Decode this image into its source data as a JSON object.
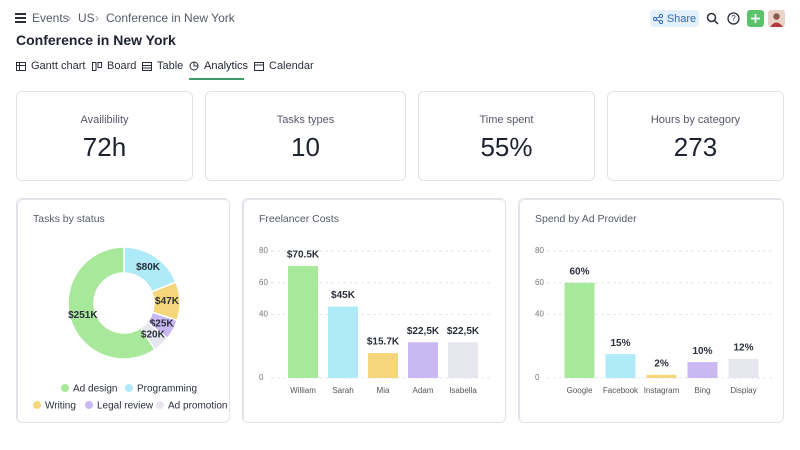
{
  "breadcrumb": [
    "Events",
    "US",
    "Conference in New York"
  ],
  "title": "Conference in New York",
  "share": "Share",
  "tabs": [
    "Gantt chart",
    "Board",
    "Table",
    "Analytics",
    "Calendar"
  ],
  "kpis": [
    {
      "label": "Availibility",
      "value": "72h"
    },
    {
      "label": "Tasks types",
      "value": "10"
    },
    {
      "label": "Time spent",
      "value": "55%"
    },
    {
      "label": "Hours by category",
      "value": "273"
    }
  ],
  "chart_data": [
    {
      "type": "pie",
      "title": "Tasks by status",
      "categories": [
        "Ad design",
        "Programming",
        "Writing",
        "Legal review",
        "Ad promotion"
      ],
      "values": [
        251000,
        80000,
        47000,
        25000,
        20000
      ],
      "value_labels": [
        "$251K",
        "$80K",
        "$47K",
        "$25K",
        "$20K"
      ],
      "colors": [
        "#a8e89a",
        "#aeeaf7",
        "#f5d67b",
        "#c9b8f2",
        "#e6e6ef"
      ]
    },
    {
      "type": "bar",
      "title": "Freelancer Costs",
      "categories": [
        "William",
        "Sarah",
        "Mia",
        "Adam",
        "Isabella"
      ],
      "values": [
        70.5,
        45,
        15.7,
        22.5,
        22.5
      ],
      "value_labels": [
        "$70.5K",
        "$45K",
        "$15.7K",
        "$22,5K",
        "$22,5K"
      ],
      "colors": [
        "#a8e89a",
        "#aeeaf7",
        "#f5d67b",
        "#c9b8f2",
        "#e6e6ef"
      ],
      "ylim": [
        0,
        80
      ],
      "yticks": [
        0,
        40,
        60,
        80
      ],
      "grid": true
    },
    {
      "type": "bar",
      "title": "Spend by Ad Provider",
      "categories": [
        "Google",
        "Facebook",
        "Instagram",
        "Bing",
        "Display"
      ],
      "values": [
        60,
        15,
        2,
        10,
        12
      ],
      "value_labels": [
        "60%",
        "15%",
        "2%",
        "10%",
        "12%"
      ],
      "colors": [
        "#a8e89a",
        "#aeeaf7",
        "#f5d67b",
        "#c9b8f2",
        "#e6e6ef"
      ],
      "ylim": [
        0,
        80
      ],
      "yticks": [
        0,
        40,
        60,
        80
      ],
      "grid": true
    }
  ]
}
